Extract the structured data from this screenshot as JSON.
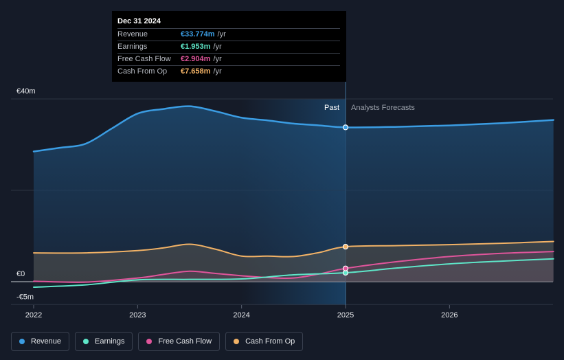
{
  "tooltip": {
    "date": "Dec 31 2024",
    "rows": [
      {
        "label": "Revenue",
        "value": "€33.774m",
        "unit": "/yr",
        "color": "#3b9de3"
      },
      {
        "label": "Earnings",
        "value": "€1.953m",
        "unit": "/yr",
        "color": "#5ee6c8"
      },
      {
        "label": "Free Cash Flow",
        "value": "€2.904m",
        "unit": "/yr",
        "color": "#e0559b"
      },
      {
        "label": "Cash From Op",
        "value": "€7.658m",
        "unit": "/yr",
        "color": "#f2b266"
      }
    ]
  },
  "chart_data": {
    "type": "line",
    "title": "",
    "xlabel": "",
    "ylabel": "",
    "x_ticks": [
      {
        "label": "2022",
        "x": 2022
      },
      {
        "label": "2023",
        "x": 2023
      },
      {
        "label": "2024",
        "x": 2024
      },
      {
        "label": "2025",
        "x": 2025
      },
      {
        "label": "2026",
        "x": 2026
      }
    ],
    "y_ticks": [
      {
        "label": "€40m",
        "y": 40
      },
      {
        "label": "€0",
        "y": 0
      },
      {
        "label": "-€5m",
        "y": -5
      }
    ],
    "xlim": [
      2021.8,
      2027
    ],
    "ylim": [
      -5,
      40
    ],
    "divider_x": 2025,
    "past_label": "Past",
    "forecast_label": "Analysts Forecasts",
    "series": [
      {
        "name": "Revenue",
        "color": "#3b9de3",
        "x": [
          2022,
          2022.25,
          2022.5,
          2022.75,
          2023,
          2023.25,
          2023.5,
          2023.75,
          2024,
          2024.25,
          2024.5,
          2024.75,
          2025,
          2025.5,
          2026,
          2026.5,
          2027
        ],
        "y": [
          28.5,
          29.3,
          30.2,
          33.5,
          36.8,
          37.8,
          38.4,
          37.3,
          35.9,
          35.3,
          34.6,
          34.2,
          33.774,
          33.9,
          34.2,
          34.7,
          35.4
        ]
      },
      {
        "name": "Earnings",
        "color": "#5ee6c8",
        "x": [
          2022,
          2022.5,
          2023,
          2023.5,
          2024,
          2024.5,
          2025,
          2025.5,
          2026,
          2026.5,
          2027
        ],
        "y": [
          -1.2,
          -0.7,
          0.4,
          0.5,
          0.6,
          1.5,
          1.953,
          3.0,
          3.9,
          4.5,
          5.0
        ]
      },
      {
        "name": "Free Cash Flow",
        "color": "#e0559b",
        "x": [
          2022,
          2022.5,
          2023,
          2023.25,
          2023.5,
          2023.75,
          2024,
          2024.25,
          2024.5,
          2024.75,
          2025,
          2025.5,
          2026,
          2026.5,
          2027
        ],
        "y": [
          0.1,
          -0.1,
          0.8,
          1.6,
          2.3,
          1.8,
          1.3,
          0.9,
          0.8,
          1.7,
          2.904,
          4.4,
          5.5,
          6.2,
          6.6
        ]
      },
      {
        "name": "Cash From Op",
        "color": "#f2b266",
        "x": [
          2022,
          2022.5,
          2023,
          2023.25,
          2023.5,
          2023.75,
          2024,
          2024.25,
          2024.5,
          2024.75,
          2025,
          2025.5,
          2026,
          2026.5,
          2027
        ],
        "y": [
          6.3,
          6.3,
          6.8,
          7.4,
          8.2,
          7.1,
          5.6,
          5.6,
          5.5,
          6.4,
          7.658,
          7.9,
          8.1,
          8.4,
          8.8
        ]
      }
    ]
  }
}
